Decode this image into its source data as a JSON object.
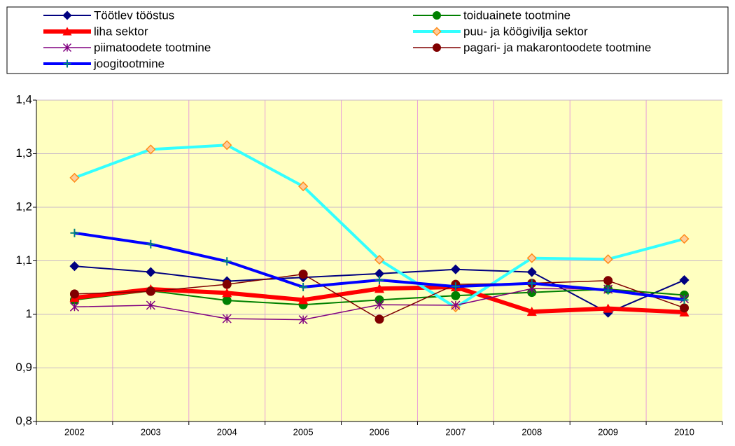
{
  "chart_data": {
    "type": "line",
    "categories": [
      "2002",
      "2003",
      "2004",
      "2005",
      "2006",
      "2007",
      "2008",
      "2009",
      "2010"
    ],
    "ylim": [
      0.8,
      1.4
    ],
    "yticks": [
      {
        "value": 0.8,
        "label": "0,8"
      },
      {
        "value": 0.9,
        "label": "0,9"
      },
      1,
      {
        "value": 1.1,
        "label": "1,1"
      },
      {
        "value": 1.2,
        "label": "1,2"
      },
      {
        "value": 1.3,
        "label": "1,3"
      },
      {
        "value": 1.4,
        "label": "1,4"
      }
    ],
    "grid": true,
    "legend": "top",
    "series": [
      {
        "name": "Töötlev tööstus",
        "color": "#000080",
        "marker": "diamond",
        "marker_color": "#000080",
        "width": 2,
        "values": [
          1.09,
          1.079,
          1.062,
          1.069,
          1.076,
          1.084,
          1.079,
          1.003,
          1.064
        ]
      },
      {
        "name": "toiduainete tootmine",
        "color": "#008000",
        "marker": "circle",
        "marker_color": "#008000",
        "width": 2,
        "values": [
          1.027,
          1.044,
          1.026,
          1.018,
          1.027,
          1.035,
          1.041,
          1.047,
          1.036
        ]
      },
      {
        "name": "liha sektor",
        "color": "#ff0000",
        "marker": "triangle",
        "marker_color": "#ff0000",
        "width": 6,
        "values": [
          1.031,
          1.047,
          1.04,
          1.027,
          1.048,
          1.051,
          1.005,
          1.011,
          1.004
        ]
      },
      {
        "name": "puu- ja köögivilja sektor",
        "color": "#33ffff",
        "marker": "diamond-open",
        "marker_color": "#ff8c1a",
        "width": 4,
        "values": [
          1.255,
          1.308,
          1.316,
          1.239,
          1.102,
          1.013,
          1.105,
          1.103,
          1.141
        ]
      },
      {
        "name": "piimatoodete tootmine",
        "color": "#800080",
        "marker": "star",
        "marker_color": "#800080",
        "width": 1.5,
        "values": [
          1.014,
          1.017,
          0.992,
          0.99,
          1.018,
          1.017,
          1.048,
          1.047,
          1.029
        ]
      },
      {
        "name": "pagari- ja makarontoodete tootmine",
        "color": "#800000",
        "marker": "circle",
        "marker_color": "#800000",
        "width": 1.5,
        "values": [
          1.038,
          1.043,
          1.056,
          1.075,
          0.991,
          1.056,
          1.058,
          1.063,
          1.012
        ]
      },
      {
        "name": "joogitootmine",
        "color": "#0000ff",
        "marker": "plus",
        "marker_color": "#008080",
        "width": 4,
        "values": [
          1.152,
          1.131,
          1.099,
          1.051,
          1.064,
          1.052,
          1.058,
          1.045,
          1.027
        ]
      }
    ]
  }
}
